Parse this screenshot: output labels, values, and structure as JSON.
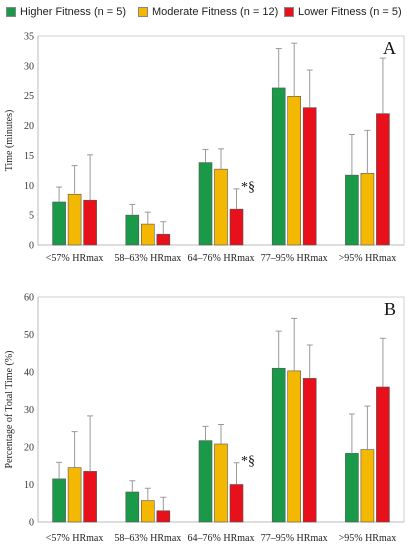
{
  "legend": [
    {
      "label": "Higher Fitness (n = 5)",
      "color": "#1a9a48"
    },
    {
      "label": "Moderate Fitness (n = 12)",
      "color": "#f5b800"
    },
    {
      "label": "Lower Fitness (n = 5)",
      "color": "#e8101b"
    }
  ],
  "chart_data": [
    {
      "type": "bar",
      "panel_label": "A",
      "ylabel": "Time (minutes)",
      "ylim": [
        0,
        35
      ],
      "yticks": [
        0,
        5,
        10,
        15,
        20,
        25,
        30,
        35
      ],
      "categories": [
        "<57% HRmax",
        "58–63% HRmax",
        "64–76% HRmax",
        "77–95% HRmax",
        ">95% HRmax"
      ],
      "series": [
        {
          "name": "Higher Fitness (n = 5)",
          "values": [
            7.2,
            5.0,
            13.8,
            26.3,
            11.7
          ],
          "error": [
            2.5,
            1.8,
            2.2,
            6.6,
            6.8
          ]
        },
        {
          "name": "Moderate Fitness (n = 12)",
          "values": [
            8.5,
            3.5,
            12.7,
            24.9,
            12.0
          ],
          "error": [
            4.8,
            2.0,
            3.4,
            8.9,
            7.2
          ]
        },
        {
          "name": "Lower Fitness (n = 5)",
          "values": [
            7.5,
            1.8,
            6.0,
            23.0,
            22.0
          ],
          "error": [
            7.6,
            2.1,
            3.4,
            6.3,
            9.3
          ]
        }
      ],
      "annotations": [
        {
          "text": "*§",
          "category": "64–76% HRmax"
        }
      ],
      "grid": false,
      "legend": "top"
    },
    {
      "type": "bar",
      "panel_label": "B",
      "ylabel": "Percentage of Total Time (%)",
      "ylim": [
        0,
        60
      ],
      "yticks": [
        0,
        10,
        20,
        30,
        40,
        50,
        60
      ],
      "categories": [
        "<57% HRmax",
        "58–63% HRmax",
        "64–76% HRmax",
        "77–95% HRmax",
        ">95% HRmax"
      ],
      "series": [
        {
          "name": "Higher Fitness (n = 5)",
          "values": [
            11.5,
            8.0,
            21.7,
            41.0,
            18.3
          ],
          "error": [
            4.4,
            3.0,
            3.8,
            9.9,
            10.5
          ]
        },
        {
          "name": "Moderate Fitness (n = 12)",
          "values": [
            14.5,
            5.7,
            20.8,
            40.3,
            19.3
          ],
          "error": [
            9.6,
            3.3,
            5.2,
            14.0,
            11.6
          ]
        },
        {
          "name": "Lower Fitness (n = 5)",
          "values": [
            13.5,
            3.0,
            10.0,
            38.3,
            36.0
          ],
          "error": [
            14.8,
            3.6,
            5.8,
            8.9,
            13.0
          ]
        }
      ],
      "annotations": [
        {
          "text": "*§",
          "category": "64–76% HRmax"
        }
      ],
      "grid": false,
      "legend": "top"
    }
  ]
}
